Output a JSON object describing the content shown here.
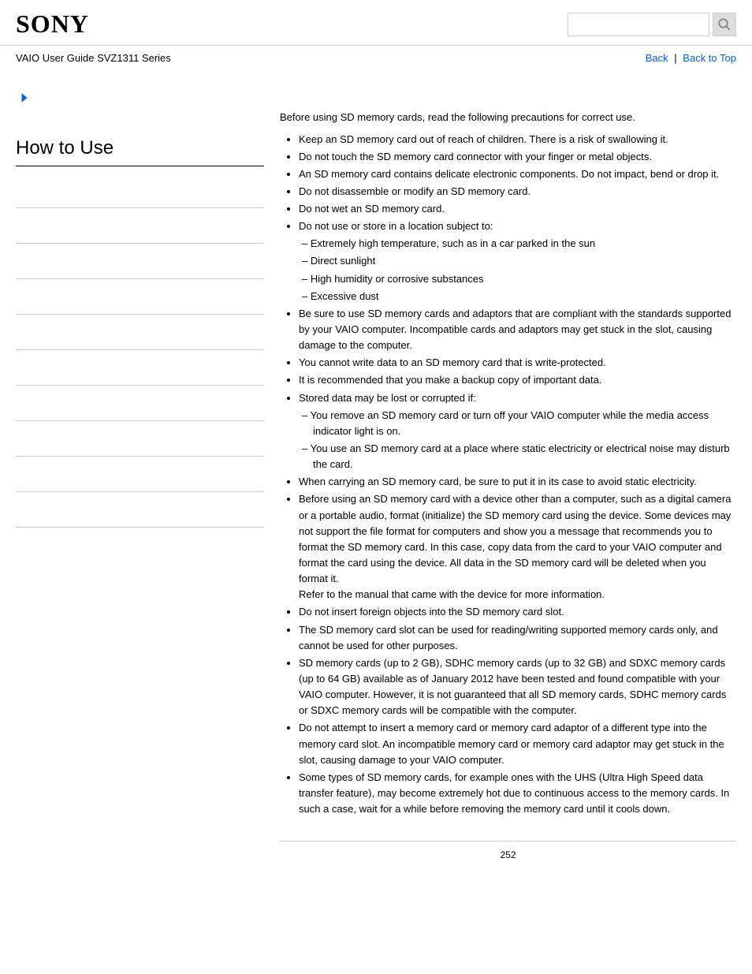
{
  "header": {
    "logo": "SONY",
    "searchPlaceholder": ""
  },
  "subheader": {
    "guideTitle": "VAIO User Guide SVZ1311 Series",
    "backLabel": "Back",
    "backToTopLabel": "Back to Top"
  },
  "sidebar": {
    "sectionTitle": "How to Use",
    "navRows": [
      "",
      "",
      "",
      "",
      "",
      "",
      "",
      "",
      "",
      ""
    ]
  },
  "content": {
    "intro": "Before using SD memory cards, read the following precautions for correct use.",
    "bullets": [
      {
        "text": "Keep an SD memory card out of reach of children. There is a risk of swallowing it."
      },
      {
        "text": "Do not touch the SD memory card connector with your finger or metal objects."
      },
      {
        "text": "An SD memory card contains delicate electronic components. Do not impact, bend or drop it."
      },
      {
        "text": "Do not disassemble or modify an SD memory card."
      },
      {
        "text": "Do not wet an SD memory card."
      },
      {
        "text": "Do not use or store in a location subject to:",
        "sub": [
          "Extremely high temperature, such as in a car parked in the sun",
          "Direct sunlight",
          "High humidity or corrosive substances",
          "Excessive dust"
        ]
      },
      {
        "text": "Be sure to use SD memory cards and adaptors that are compliant with the standards supported by your VAIO computer. Incompatible cards and adaptors may get stuck in the slot, causing damage to the computer."
      },
      {
        "text": "You cannot write data to an SD memory card that is write-protected."
      },
      {
        "text": "It is recommended that you make a backup copy of important data."
      },
      {
        "text": "Stored data may be lost or corrupted if:",
        "sub": [
          "You remove an SD memory card or turn off your VAIO computer while the media access indicator light is on.",
          "You use an SD memory card at a place where static electricity or electrical noise may disturb the card."
        ]
      },
      {
        "text": "When carrying an SD memory card, be sure to put it in its case to avoid static electricity."
      },
      {
        "text": "Before using an SD memory card with a device other than a computer, such as a digital camera or a portable audio, format (initialize) the SD memory card using the device. Some devices may not support the file format for computers and show you a message that recommends you to format the SD memory card. In this case, copy data from the card to your VAIO computer and format the card using the device. All data in the SD memory card will be deleted when you format it.",
        "extra": "Refer to the manual that came with the device for more information."
      },
      {
        "text": "Do not insert foreign objects into the SD memory card slot."
      },
      {
        "text": "The SD memory card slot can be used for reading/writing supported memory cards only, and cannot be used for other purposes."
      },
      {
        "text": "SD memory cards (up to 2 GB), SDHC memory cards (up to 32 GB) and SDXC memory cards (up to 64 GB) available as of January 2012 have been tested and found compatible with your VAIO computer. However, it is not guaranteed that all SD memory cards, SDHC memory cards or SDXC memory cards will be compatible with the computer."
      },
      {
        "text": "Do not attempt to insert a memory card or memory card adaptor of a different type into the memory card slot. An incompatible memory card or memory card adaptor may get stuck in the slot, causing damage to your VAIO computer."
      },
      {
        "text": "Some types of SD memory cards, for example ones with the UHS (Ultra High Speed data transfer feature), may become extremely hot due to continuous access to the memory cards. In such a case, wait for a while before removing the memory card until it cools down."
      }
    ]
  },
  "pageNumber": "252"
}
